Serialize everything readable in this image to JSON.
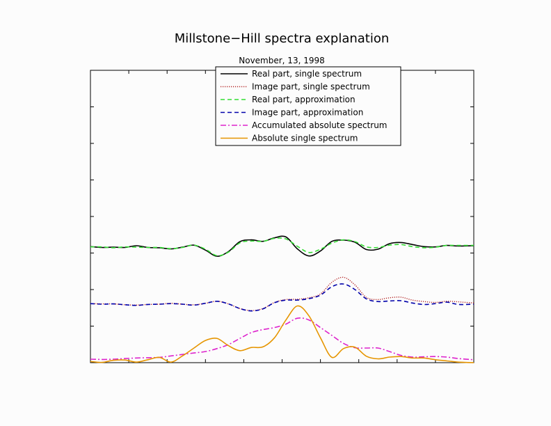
{
  "chart_data": {
    "type": "line",
    "title": "Millstone−Hill spectra explanation",
    "subtitle": "November, 13, 1998",
    "xlabel": "",
    "ylabel": "",
    "xlim": [
      0,
      100
    ],
    "ylim": [
      0,
      100
    ],
    "x_ticks": 10,
    "y_ticks": 8,
    "x_tick_labels": [],
    "y_tick_labels": [],
    "grid": false,
    "legend_position": "top-center",
    "series": [
      {
        "name": "Real part, single spectrum",
        "color": "#000000",
        "style": "solid",
        "x": [
          0,
          3,
          6,
          9,
          12,
          15,
          18,
          21,
          24,
          27,
          30,
          33,
          36,
          39,
          42,
          45,
          48,
          51,
          54,
          57,
          60,
          63,
          66,
          69,
          72,
          75,
          78,
          81,
          84,
          87,
          90,
          93,
          96,
          100
        ],
        "y": [
          39.7,
          39.4,
          39.5,
          39.4,
          40.0,
          39.4,
          39.3,
          38.9,
          39.5,
          40.2,
          38.5,
          36.4,
          38.0,
          41.4,
          42.0,
          41.5,
          42.7,
          43.0,
          38.9,
          36.5,
          38.2,
          41.5,
          41.9,
          41.2,
          38.7,
          38.8,
          40.7,
          41.1,
          40.4,
          39.7,
          39.6,
          40.1,
          39.9,
          40.0
        ]
      },
      {
        "name": "Image part, single spectrum",
        "color": "#b22222",
        "style": "dotted",
        "x": [
          0,
          3,
          6,
          9,
          12,
          15,
          18,
          21,
          24,
          27,
          30,
          33,
          36,
          39,
          42,
          45,
          48,
          51,
          54,
          57,
          60,
          63,
          66,
          69,
          72,
          75,
          78,
          81,
          84,
          87,
          90,
          93,
          96,
          100
        ],
        "y": [
          20.2,
          20.1,
          20.1,
          19.8,
          19.7,
          19.9,
          20.0,
          20.3,
          20.0,
          19.8,
          20.3,
          21.0,
          20.1,
          18.5,
          17.8,
          18.5,
          20.6,
          21.6,
          21.7,
          22.2,
          23.5,
          27.5,
          29.2,
          26.6,
          22.3,
          21.6,
          22.2,
          22.4,
          21.4,
          20.9,
          20.6,
          21.0,
          20.8,
          20.4
        ]
      },
      {
        "name": "Real part, approximation",
        "color": "#33dd33",
        "style": "dashed",
        "x": [
          0,
          3,
          6,
          9,
          12,
          15,
          18,
          21,
          24,
          27,
          30,
          33,
          36,
          39,
          42,
          45,
          48,
          51,
          54,
          57,
          60,
          63,
          66,
          69,
          72,
          75,
          78,
          81,
          84,
          87,
          90,
          93,
          96,
          100
        ],
        "y": [
          39.6,
          39.6,
          39.3,
          39.6,
          39.5,
          39.4,
          39.4,
          39.0,
          39.4,
          40.2,
          38.8,
          36.6,
          37.8,
          41.0,
          41.6,
          41.5,
          42.5,
          42.3,
          39.8,
          37.7,
          38.8,
          40.9,
          42.0,
          41.4,
          39.6,
          39.4,
          40.2,
          40.4,
          39.7,
          39.3,
          39.5,
          40.1,
          40.1,
          40.1
        ]
      },
      {
        "name": "Image part, approximation",
        "color": "#0000aa",
        "style": "dashed",
        "x": [
          0,
          3,
          6,
          9,
          12,
          15,
          18,
          21,
          24,
          27,
          30,
          33,
          36,
          39,
          42,
          45,
          48,
          51,
          54,
          57,
          60,
          63,
          66,
          69,
          72,
          75,
          78,
          81,
          84,
          87,
          90,
          93,
          96,
          100
        ],
        "y": [
          20.2,
          20.0,
          20.1,
          19.8,
          19.6,
          19.9,
          20.0,
          20.2,
          20.0,
          19.7,
          20.3,
          21.0,
          20.1,
          18.5,
          17.7,
          18.4,
          20.5,
          21.4,
          21.4,
          21.9,
          23.1,
          26.0,
          26.9,
          25.0,
          21.8,
          20.9,
          21.1,
          21.2,
          20.4,
          19.9,
          20.2,
          20.7,
          19.9,
          20.0
        ]
      },
      {
        "name": "Accumulated absolute spectrum",
        "color": "#dd22cc",
        "style": "dashdot",
        "x": [
          0,
          3,
          6,
          9,
          12,
          15,
          18,
          21,
          24,
          27,
          30,
          33,
          36,
          39,
          42,
          45,
          48,
          51,
          54,
          57,
          60,
          63,
          66,
          69,
          72,
          75,
          78,
          81,
          84,
          87,
          90,
          93,
          96,
          100
        ],
        "y": [
          1.2,
          1.1,
          1.2,
          1.4,
          1.6,
          1.7,
          1.8,
          2.3,
          2.8,
          3.3,
          3.8,
          4.8,
          6.2,
          8.3,
          10.3,
          11.3,
          12.0,
          13.2,
          15.2,
          14.6,
          12.0,
          9.3,
          6.6,
          5.1,
          5.0,
          5.0,
          3.8,
          2.5,
          1.9,
          2.0,
          2.1,
          1.9,
          1.4,
          1.0
        ]
      },
      {
        "name": "Absolute single spectrum",
        "color": "#e69500",
        "style": "solid",
        "x": [
          0,
          3,
          6,
          9,
          12,
          15,
          18,
          21,
          24,
          27,
          30,
          33,
          36,
          39,
          42,
          45,
          48,
          51,
          54,
          57,
          60,
          63,
          66,
          69,
          72,
          75,
          78,
          81,
          84,
          87,
          90,
          93,
          96,
          100
        ],
        "y": [
          0.4,
          0.1,
          0.8,
          0.9,
          0.2,
          1.0,
          1.8,
          0.2,
          2.3,
          5.0,
          7.6,
          8.3,
          5.8,
          4.1,
          5.2,
          5.4,
          8.5,
          14.6,
          19.4,
          16.0,
          8.5,
          1.8,
          4.8,
          5.3,
          2.2,
          1.3,
          1.9,
          2.1,
          1.6,
          1.6,
          1.0,
          0.6,
          0.2,
          0.0
        ]
      }
    ]
  }
}
